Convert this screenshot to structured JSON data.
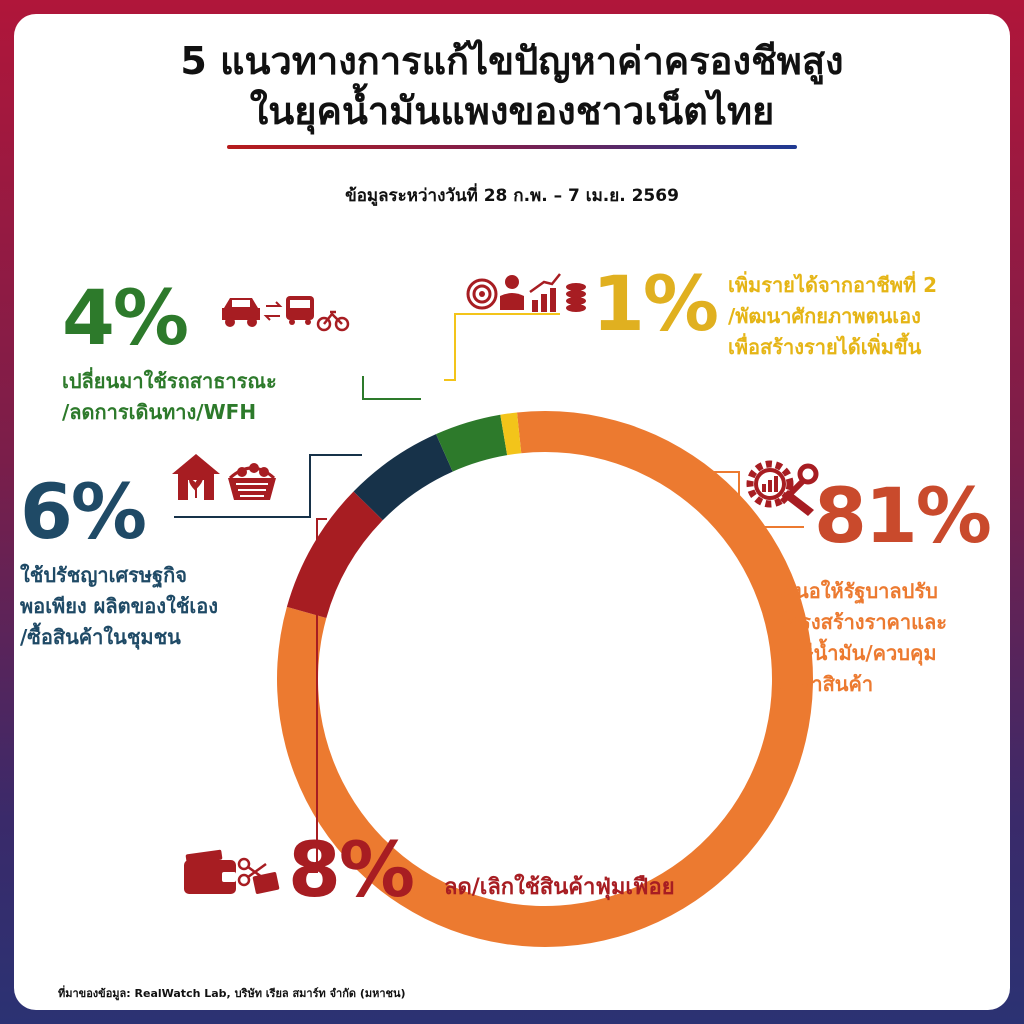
{
  "header": {
    "title_line1": "5 แนวทางการแก้ไขปัญหาค่าครองชีพสูง",
    "title_line2": "ในยุคน้ำมันแพงของชาวเน็ตไทย",
    "subtitle": "ข้อมูลระหว่างวันที่ 28 ก.พ. – 7 เม.ย. 2569"
  },
  "chart_data": {
    "type": "pie",
    "variant": "donut",
    "categories": [
      "เสนอให้รัฐบาลปรับโครงสร้างราคาและภาษีน้ำมัน/ควบคุมราคาสินค้า",
      "ลด/เลิกใช้สินค้าฟุ่มเฟือย",
      "ใช้ปรัชญาเศรษฐกิจพอเพียง ผลิตของใช้เอง/ซื้อสินค้าในชุมชน",
      "เปลี่ยนมาใช้รถสาธารณะ/ลดการเดินทาง/WFH",
      "เพิ่มรายได้จากอาชีพที่ 2/พัฒนาศักยภาพตนเองเพื่อสร้างรายได้เพิ่มขึ้น"
    ],
    "values": [
      81,
      8,
      6,
      4,
      1
    ],
    "labels": [
      "81%",
      "8%",
      "6%",
      "4%",
      "1%"
    ],
    "colors": [
      "#ec7a30",
      "#a71d22",
      "#173249",
      "#2d7a2b",
      "#f3c41a"
    ]
  },
  "items": {
    "fuel": {
      "pct": "81%",
      "line1": "เสนอให้รัฐบาลปรับ",
      "line2": "โครงสร้างราคาและ",
      "line3": "ภาษีน้ำมัน/ควบคุม",
      "line4": "ราคาสินค้า",
      "icon": "gear-wrench-chart-icon"
    },
    "luxury": {
      "pct": "8%",
      "line1": "ลด/เลิกใช้สินค้าฟุ่มเฟือย",
      "icon": "wallet-scissors-icon"
    },
    "sufficiency": {
      "pct": "6%",
      "line1": "ใช้ปรัชญาเศรษฐกิจ",
      "line2": "พอเพียง ผลิตของใช้เอง",
      "line3": "/ซื้อสินค้าในชุมชน",
      "icon": "house-plant-basket-icon"
    },
    "transport": {
      "pct": "4%",
      "line1": "เปลี่ยนมาใช้รถสาธารณะ",
      "line2": "/ลดการเดินทาง/WFH",
      "icon": "car-bus-bicycle-icon"
    },
    "income": {
      "pct": "1%",
      "line1": "เพิ่มรายได้จากอาชีพที่ 2",
      "line2": "/พัฒนาศักยภาพตนเอง",
      "line3": "เพื่อสร้างรายได้เพิ่มขึ้น",
      "icon": "target-reader-coins-icon"
    }
  },
  "footer": {
    "source": "ที่มาของข้อมูล: RealWatch Lab, บริษัท เรียล สมาร์ท จำกัด (มหาชน)"
  }
}
